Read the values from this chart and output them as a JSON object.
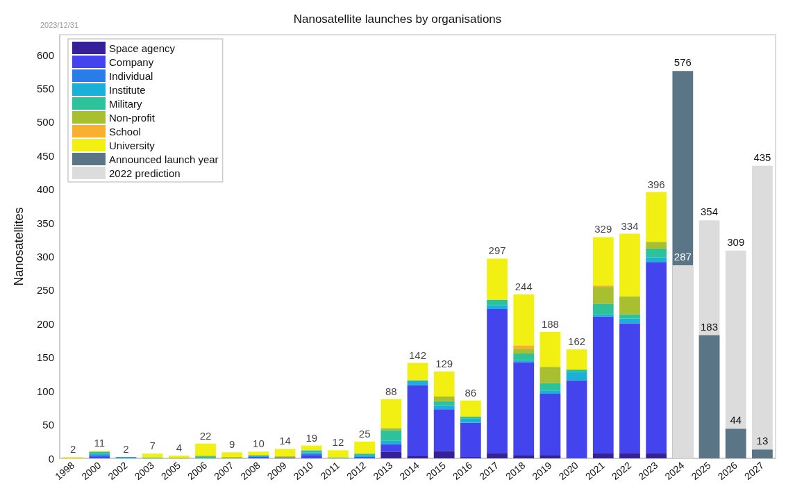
{
  "chart_data": {
    "type": "bar",
    "title": "Nanosatellite launches by organisations",
    "ylabel": "Nanosatellites",
    "annotations": [
      "2023/12/31"
    ],
    "categories": [
      "1998",
      "2000",
      "2002",
      "2003",
      "2005",
      "2006",
      "2007",
      "2008",
      "2009",
      "2010",
      "2011",
      "2012",
      "2013",
      "2014",
      "2015",
      "2016",
      "2017",
      "2018",
      "2019",
      "2020",
      "2021",
      "2022",
      "2023",
      "2024",
      "2025",
      "2026",
      "2027"
    ],
    "ylim": [
      0,
      630
    ],
    "yticks": [
      0,
      50,
      100,
      150,
      200,
      250,
      300,
      350,
      400,
      450,
      500,
      550,
      600
    ],
    "grid": false,
    "legend": "top left",
    "totals": [
      "2",
      "11",
      "2",
      "7",
      "4",
      "22",
      "9",
      "10",
      "14",
      "19",
      "12",
      "25",
      "88",
      "142",
      "129",
      "86",
      "297",
      "244",
      "188",
      "162",
      "329",
      "334",
      "396",
      null,
      null,
      null,
      null
    ],
    "series": [
      {
        "name": "Space agency",
        "color": "#35209a",
        "values": [
          null,
          null,
          null,
          null,
          null,
          null,
          null,
          null,
          null,
          null,
          null,
          null,
          10,
          4,
          11,
          2,
          8,
          5,
          5,
          null,
          8,
          8,
          8,
          null,
          null,
          null,
          null
        ],
        "base": [
          null,
          null,
          null,
          null,
          null,
          null,
          null,
          null,
          null,
          null,
          null,
          null,
          0,
          0,
          0,
          0,
          0,
          0,
          0,
          null,
          0,
          0,
          0,
          null,
          null,
          null,
          null
        ]
      },
      {
        "name": "Company",
        "color": "#4444ee",
        "values": [
          null,
          3,
          null,
          null,
          null,
          null,
          null,
          2,
          1,
          5,
          null,
          2,
          11,
          105,
          62,
          51,
          214,
          138,
          91,
          116,
          203,
          193,
          284,
          null,
          null,
          null,
          null
        ],
        "base": [
          null,
          0,
          null,
          null,
          null,
          null,
          null,
          0,
          0,
          0,
          null,
          0,
          10,
          4,
          11,
          2,
          8,
          5,
          5,
          0,
          8,
          8,
          8,
          null,
          null,
          null,
          null
        ]
      },
      {
        "name": "Individual",
        "color": "#2a7de8",
        "values": [
          null,
          2,
          null,
          null,
          null,
          null,
          null,
          null,
          null,
          2,
          null,
          null,
          null,
          null,
          null,
          null,
          null,
          null,
          null,
          null,
          null,
          null,
          null,
          null,
          null,
          null,
          null
        ],
        "base": [
          null,
          3,
          null,
          null,
          null,
          null,
          null,
          null,
          null,
          5,
          null,
          null,
          null,
          null,
          null,
          null,
          null,
          null,
          null,
          null,
          null,
          null,
          null,
          null,
          null,
          null,
          null
        ]
      },
      {
        "name": "Institute",
        "color": "#1ab0d8",
        "values": [
          null,
          2,
          2,
          null,
          null,
          null,
          null,
          2,
          null,
          2,
          1,
          3,
          5,
          7,
          6,
          6,
          6,
          3,
          5,
          12,
          3,
          7,
          7,
          null,
          null,
          null,
          null
        ],
        "base": [
          null,
          5,
          0,
          null,
          null,
          null,
          null,
          2,
          null,
          7,
          0,
          2,
          21,
          109,
          73,
          53,
          222,
          143,
          96,
          116,
          211,
          201,
          292,
          null,
          null,
          null,
          null
        ]
      },
      {
        "name": "Military",
        "color": "#2ec29a",
        "values": [
          null,
          3,
          null,
          1,
          null,
          3,
          null,
          null,
          null,
          3,
          null,
          2,
          16,
          null,
          6,
          3,
          8,
          10,
          11,
          4,
          16,
          6,
          13,
          null,
          null,
          null,
          null
        ],
        "base": [
          null,
          7,
          null,
          0,
          null,
          0,
          null,
          null,
          null,
          9,
          null,
          5,
          26,
          null,
          79,
          59,
          228,
          146,
          101,
          128,
          214,
          208,
          299,
          null,
          null,
          null,
          null
        ]
      },
      {
        "name": "Non-profit",
        "color": "#a8c030",
        "values": [
          null,
          null,
          null,
          null,
          1,
          1,
          2,
          1,
          2,
          null,
          null,
          null,
          3,
          null,
          7,
          null,
          null,
          7,
          24,
          null,
          25,
          27,
          10,
          null,
          null,
          null,
          null
        ],
        "base": [
          null,
          null,
          null,
          null,
          0,
          3,
          0,
          4,
          1,
          null,
          null,
          null,
          42,
          null,
          85,
          null,
          null,
          156,
          112,
          null,
          230,
          214,
          312,
          null,
          null,
          null,
          null
        ]
      },
      {
        "name": "School",
        "color": "#f8b030",
        "values": [
          null,
          null,
          null,
          null,
          null,
          null,
          null,
          null,
          null,
          null,
          null,
          null,
          null,
          null,
          null,
          null,
          null,
          5,
          null,
          null,
          2,
          null,
          null,
          null,
          null,
          null,
          null
        ],
        "base": [
          null,
          null,
          null,
          null,
          null,
          null,
          null,
          null,
          null,
          null,
          null,
          null,
          null,
          null,
          null,
          null,
          null,
          163,
          null,
          null,
          255,
          null,
          null,
          null,
          null,
          null,
          null
        ]
      },
      {
        "name": "University",
        "color": "#f2f012",
        "values": [
          2,
          1,
          null,
          6,
          3,
          18,
          7,
          5,
          11,
          7,
          11,
          18,
          43,
          26,
          37,
          24,
          61,
          76,
          52,
          30,
          72,
          93,
          74,
          null,
          null,
          null,
          null
        ],
        "base": [
          0,
          10,
          null,
          1,
          1,
          4,
          2,
          5,
          3,
          12,
          1,
          7,
          45,
          116,
          92,
          62,
          236,
          168,
          136,
          132,
          257,
          241,
          322,
          null,
          null,
          null,
          null
        ]
      },
      {
        "name": "Announced launch year",
        "color": "#5a7585",
        "values": [
          null,
          null,
          null,
          null,
          null,
          null,
          null,
          null,
          null,
          null,
          null,
          null,
          null,
          null,
          null,
          null,
          null,
          null,
          null,
          null,
          null,
          null,
          null,
          576,
          183,
          44,
          13
        ],
        "value_labels": [
          null,
          null,
          null,
          null,
          null,
          null,
          null,
          null,
          null,
          null,
          null,
          null,
          null,
          null,
          null,
          null,
          null,
          null,
          null,
          null,
          null,
          null,
          null,
          "576",
          "183",
          "44",
          "13"
        ]
      },
      {
        "name": "2022 prediction",
        "color": "#dcdcdc",
        "values": [
          null,
          null,
          null,
          null,
          null,
          null,
          null,
          null,
          null,
          null,
          null,
          null,
          null,
          null,
          null,
          null,
          null,
          null,
          null,
          null,
          null,
          null,
          null,
          287,
          354,
          309,
          435
        ],
        "value_labels": [
          null,
          null,
          null,
          null,
          null,
          null,
          null,
          null,
          null,
          null,
          null,
          null,
          null,
          null,
          null,
          null,
          null,
          null,
          null,
          null,
          null,
          null,
          null,
          "287",
          "354",
          "309",
          "435"
        ]
      }
    ]
  }
}
